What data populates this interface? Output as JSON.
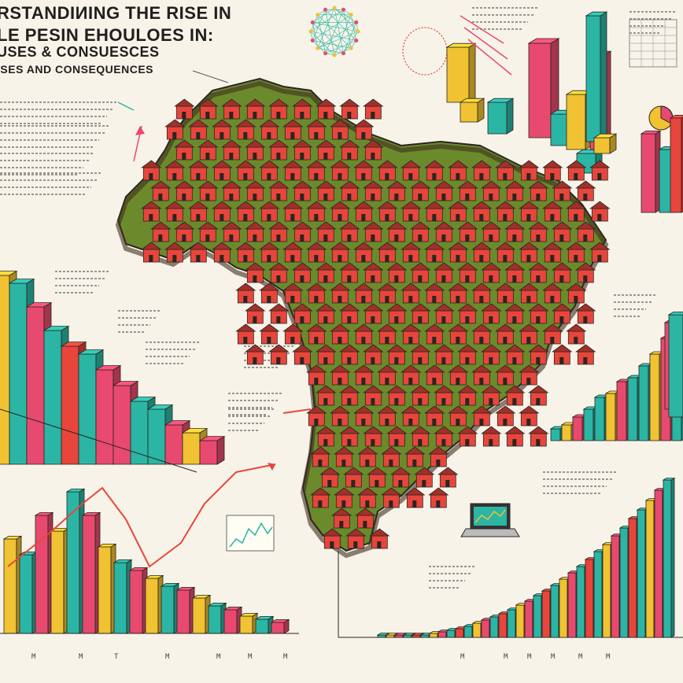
{
  "title": {
    "line1": "RSTANDIИING THE RISE IN",
    "line2": "LE PESIN EHOULOES IN:",
    "line3": "USES & CONSUESCES",
    "line4": "ISES AND CONSEQUENCES"
  },
  "bottom_axis_labels": [
    "M",
    "M",
    "T",
    "M",
    "M",
    "M",
    "M"
  ],
  "right_axis_labels": [
    "M",
    "M",
    "M",
    "M",
    "M",
    "M"
  ],
  "colors": {
    "background": "#f7f3e8",
    "magenta": "#e84a6f",
    "teal": "#2bb5a4",
    "yellow": "#f1c232",
    "red": "#e8453c",
    "green": "#5b7d2a",
    "dark": "#2a2620",
    "ink": "#1f1f1f"
  },
  "icons": [
    "laptop-icon",
    "trend-arrow-icon",
    "pie-chart-icon",
    "network-diagram-icon"
  ]
}
